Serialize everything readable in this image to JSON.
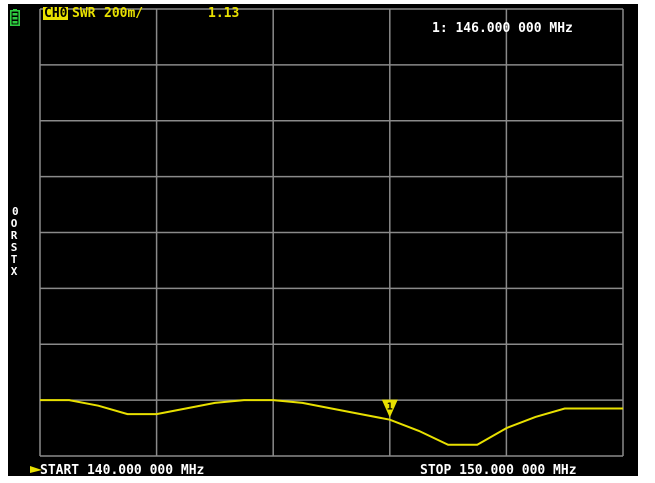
{
  "header": {
    "channel": "CH0",
    "format": "SWR",
    "scale": "200m/",
    "value": "1.13",
    "marker_readout": "1: 146.000 000 MHz"
  },
  "side_scale": {
    "ref_value": "0",
    "label_chars": [
      "O",
      "R",
      "S",
      "T",
      "X"
    ]
  },
  "footer": {
    "start": "START 140.000 000 MHz",
    "stop": "STOP 150.000 000 MHz"
  },
  "marker": {
    "label": "1",
    "frequency_mhz": 146.0
  },
  "colors": {
    "trace": "#e8e000",
    "grid": "#8a8a8a",
    "background": "#000000",
    "battery": "#2ecc40"
  },
  "chart_data": {
    "type": "line",
    "title": "",
    "xlabel": "",
    "ylabel": "",
    "xlim": [
      140.0,
      150.0
    ],
    "ylim": [
      1.0,
      2.6
    ],
    "grid": true,
    "series": [
      {
        "values_x": [
          140.0,
          140.5,
          141.0,
          141.5,
          142.0,
          142.5,
          143.0,
          143.5,
          144.0,
          144.5,
          145.0,
          145.5,
          146.0,
          146.5,
          147.0,
          147.5,
          148.0,
          148.5,
          149.0,
          149.5,
          150.0
        ],
        "values_y": [
          1.2,
          1.2,
          1.18,
          1.15,
          1.15,
          1.17,
          1.19,
          1.2,
          1.2,
          1.19,
          1.17,
          1.15,
          1.13,
          1.09,
          1.04,
          1.04,
          1.1,
          1.14,
          1.17,
          1.17,
          1.17
        ]
      }
    ]
  }
}
